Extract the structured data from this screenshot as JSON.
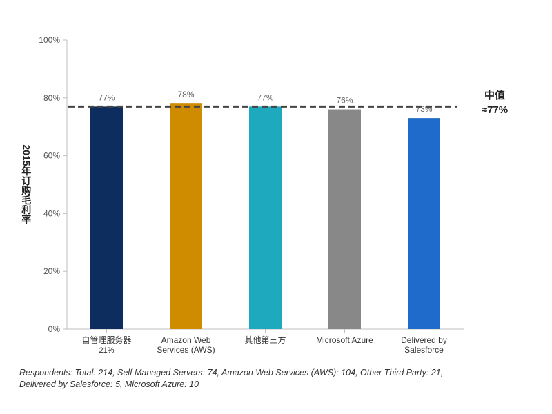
{
  "chart_data": {
    "type": "bar",
    "ylabel": "2015年订购毛利率",
    "ylim": [
      0,
      100
    ],
    "yticks": [
      0,
      20,
      40,
      60,
      80,
      100
    ],
    "ytick_labels": [
      "0%",
      "20%",
      "40%",
      "60%",
      "80%",
      "100%"
    ],
    "categories": [
      {
        "lines": [
          "自管理服务器",
          "21%"
        ],
        "value": 77,
        "label": "77%",
        "color": "#0d2d5e"
      },
      {
        "lines": [
          "Amazon Web",
          "Services (AWS)"
        ],
        "value": 78,
        "label": "78%",
        "color": "#d08c00"
      },
      {
        "lines": [
          "其他第三方"
        ],
        "value": 77,
        "label": "77%",
        "color": "#1fa9bf"
      },
      {
        "lines": [
          "Microsoft Azure"
        ],
        "value": 76,
        "label": "76%",
        "color": "#888888"
      },
      {
        "lines": [
          "Delivered by",
          "Salesforce"
        ],
        "value": 73,
        "label": "73%",
        "color": "#1e6bcc"
      }
    ],
    "reference_line": {
      "value": 77,
      "label_lines": [
        "中值",
        "≈77%"
      ],
      "style": "dashed"
    },
    "grid": false
  },
  "footnote": [
    "Respondents: Total: 214, Self Managed Servers: 74, Amazon Web Services (AWS): 104, Other Third Party: 21,",
    "Delivered by Salesforce: 5, Microsoft Azure: 10"
  ]
}
